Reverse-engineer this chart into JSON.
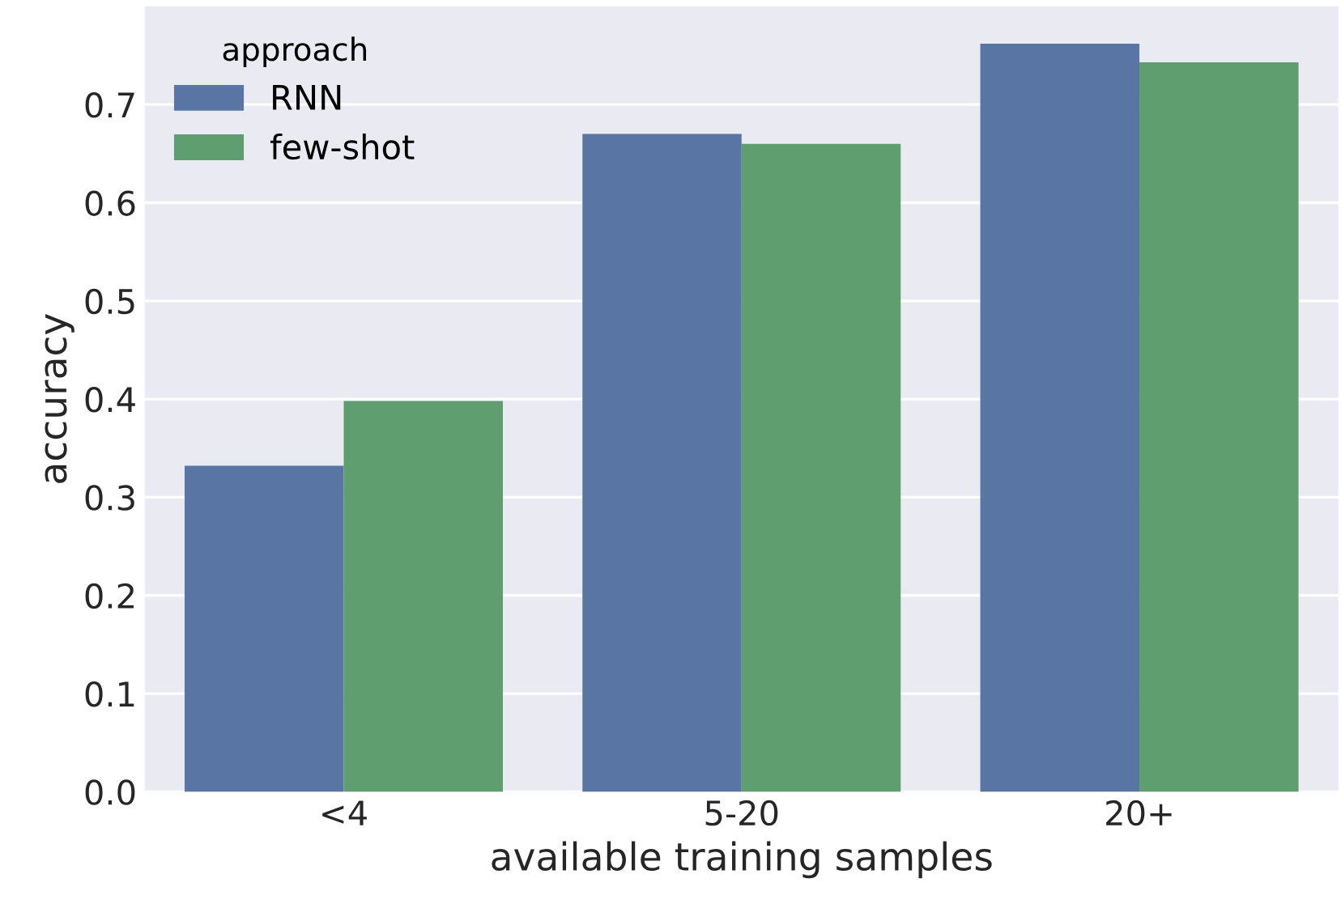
{
  "chart_data": {
    "type": "bar",
    "xlabel": "available training samples",
    "ylabel": "accuracy",
    "legend_title": "approach",
    "categories": [
      "<4",
      "5-20",
      "20+"
    ],
    "series": [
      {
        "name": "RNN",
        "color": "#5875a4",
        "values": [
          0.332,
          0.67,
          0.762
        ]
      },
      {
        "name": "few-shot",
        "color": "#5f9e6e",
        "values": [
          0.398,
          0.66,
          0.743
        ]
      }
    ],
    "ylim": [
      0,
      0.8
    ],
    "yticks": [
      {
        "value": 0,
        "label": "0.0"
      },
      0.1,
      0.2,
      0.3,
      0.4,
      0.5,
      0.6,
      0.7
    ],
    "grid": "y",
    "legend": "top left"
  }
}
